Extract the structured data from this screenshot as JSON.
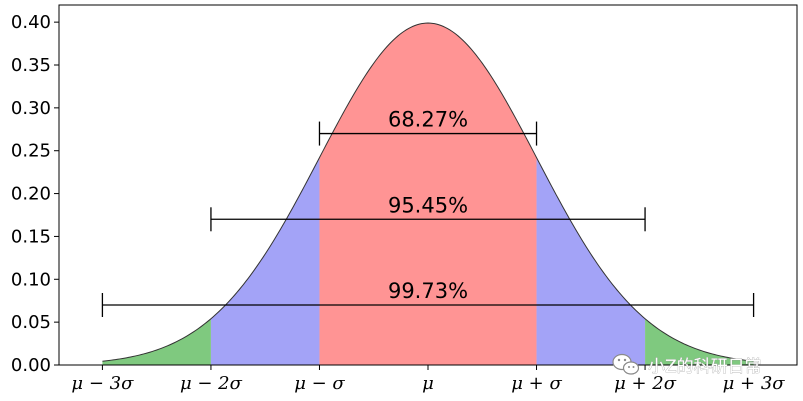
{
  "chart_data": {
    "type": "area",
    "title": "",
    "xlabel": "",
    "ylabel": "",
    "distribution": "standard normal density",
    "xlim": [
      -3.4,
      3.4
    ],
    "ylim": [
      0,
      0.42
    ],
    "curve_x_range": [
      -3,
      3
    ],
    "yticks": [
      {
        "value": 0.0,
        "label": "0.00"
      },
      {
        "value": 0.05,
        "label": "0.05"
      },
      {
        "value": 0.1,
        "label": "0.10"
      },
      {
        "value": 0.15,
        "label": "0.15"
      },
      {
        "value": 0.2,
        "label": "0.20"
      },
      {
        "value": 0.25,
        "label": "0.25"
      },
      {
        "value": 0.3,
        "label": "0.30"
      },
      {
        "value": 0.35,
        "label": "0.35"
      },
      {
        "value": 0.4,
        "label": "0.40"
      }
    ],
    "xticks": [
      {
        "value": -3,
        "label": "μ − 3σ"
      },
      {
        "value": -2,
        "label": "μ − 2σ"
      },
      {
        "value": -1,
        "label": "μ − σ"
      },
      {
        "value": 0,
        "label": "μ"
      },
      {
        "value": 1,
        "label": "μ + σ"
      },
      {
        "value": 2,
        "label": "μ + 2σ"
      },
      {
        "value": 3,
        "label": "μ + 3σ"
      }
    ],
    "regions": [
      {
        "from": -3,
        "to": -2,
        "color": "#7fc97f"
      },
      {
        "from": -2,
        "to": -1,
        "color": "#a3a3f7"
      },
      {
        "from": -1,
        "to": 1,
        "color": "#ff9494"
      },
      {
        "from": 1,
        "to": 2,
        "color": "#a3a3f7"
      },
      {
        "from": 2,
        "to": 3,
        "color": "#7fc97f"
      }
    ],
    "annotations": [
      {
        "label": "68.27%",
        "from": -1,
        "to": 1,
        "y": 0.27
      },
      {
        "label": "95.45%",
        "from": -2,
        "to": 2,
        "y": 0.17
      },
      {
        "label": "99.73%",
        "from": -3,
        "to": 3,
        "y": 0.07
      }
    ],
    "grid": false,
    "legend": "none"
  },
  "watermark": {
    "text": "小Z的科研日常",
    "icon": "wechat-icon"
  }
}
